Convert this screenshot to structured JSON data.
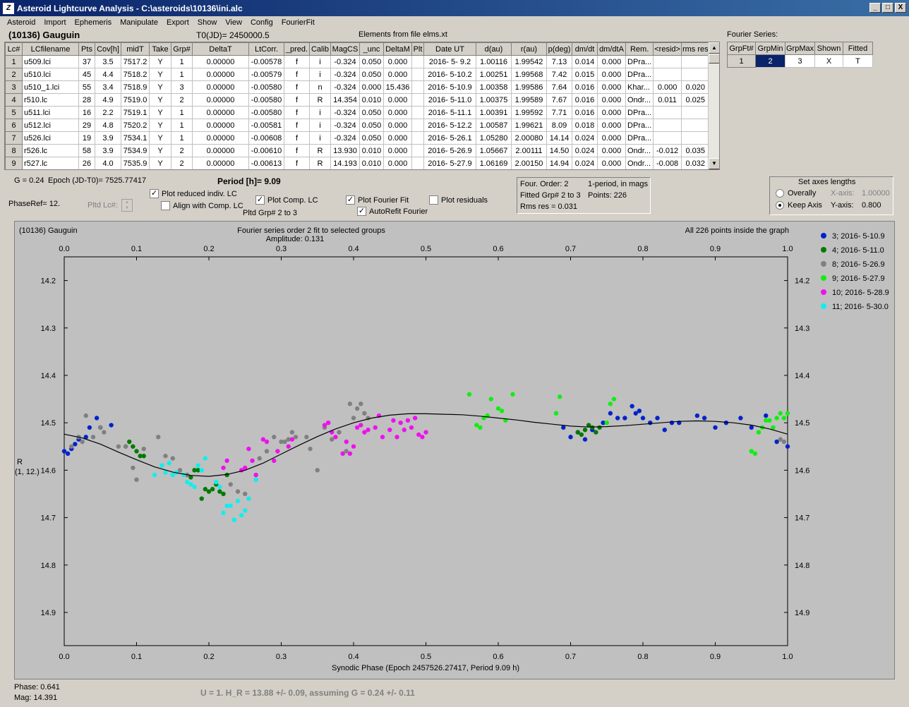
{
  "window": {
    "title": "Asteroid Lightcurve Analysis - C:\\asteroids\\10136\\ini.alc",
    "icon": "app-icon",
    "min": "_",
    "max": "□",
    "close": "X"
  },
  "menu": [
    "Asteroid",
    "Import",
    "Ephemeris",
    "Manipulate",
    "Export",
    "Show",
    "View",
    "Config",
    "FourierFit"
  ],
  "header": {
    "asteroid": "(10136) Gauguin",
    "t0": "T0(JD)= 2450000.5",
    "elements": "Elements from file elms.xt"
  },
  "lc_table": {
    "columns": [
      "Lc#",
      "LCfilename",
      "Pts",
      "Cov[h]",
      "midT",
      "Take",
      "Grp#",
      "DeltaT",
      "LtCorr.",
      "_pred.",
      "Calib",
      "MagCS",
      "_unc",
      "DeltaM",
      "Plt",
      "Date UT",
      "d(au)",
      "r(au)",
      "p(deg)",
      "dm/dt",
      "dm/dtA",
      "Rem.",
      "<resid>",
      "rms res"
    ],
    "rows": [
      [
        "1",
        "u509.lci",
        "37",
        "3.5",
        "7517.2",
        "Y",
        "1",
        "0.00000",
        "-0.00578",
        "f",
        "i",
        "-0.324",
        "0.050",
        "0.000",
        "",
        "2016- 5- 9.2",
        "1.00116",
        "1.99542",
        "7.13",
        "0.014",
        "0.000",
        "DPra...",
        "",
        ""
      ],
      [
        "2",
        "u510.lci",
        "45",
        "4.4",
        "7518.2",
        "Y",
        "1",
        "0.00000",
        "-0.00579",
        "f",
        "i",
        "-0.324",
        "0.050",
        "0.000",
        "",
        "2016- 5-10.2",
        "1.00251",
        "1.99568",
        "7.42",
        "0.015",
        "0.000",
        "DPra...",
        "",
        ""
      ],
      [
        "3",
        "u510_1.lci",
        "55",
        "3.4",
        "7518.9",
        "Y",
        "3",
        "0.00000",
        "-0.00580",
        "f",
        "n",
        "-0.324",
        "0.000",
        "15.436",
        "",
        "2016- 5-10.9",
        "1.00358",
        "1.99586",
        "7.64",
        "0.016",
        "0.000",
        "Khar...",
        "0.000",
        "0.020"
      ],
      [
        "4",
        "r510.lc",
        "28",
        "4.9",
        "7519.0",
        "Y",
        "2",
        "0.00000",
        "-0.00580",
        "f",
        "R",
        "14.354",
        "0.010",
        "0.000",
        "",
        "2016- 5-11.0",
        "1.00375",
        "1.99589",
        "7.67",
        "0.016",
        "0.000",
        "Ondr...",
        "0.011",
        "0.025"
      ],
      [
        "5",
        "u511.lci",
        "16",
        "2.2",
        "7519.1",
        "Y",
        "1",
        "0.00000",
        "-0.00580",
        "f",
        "i",
        "-0.324",
        "0.050",
        "0.000",
        "",
        "2016- 5-11.1",
        "1.00391",
        "1.99592",
        "7.71",
        "0.016",
        "0.000",
        "DPra...",
        "",
        ""
      ],
      [
        "6",
        "u512.lci",
        "29",
        "4.8",
        "7520.2",
        "Y",
        "1",
        "0.00000",
        "-0.00581",
        "f",
        "i",
        "-0.324",
        "0.050",
        "0.000",
        "",
        "2016- 5-12.2",
        "1.00587",
        "1.99621",
        "8.09",
        "0.018",
        "0.000",
        "DPra...",
        "",
        ""
      ],
      [
        "7",
        "u526.lci",
        "19",
        "3.9",
        "7534.1",
        "Y",
        "1",
        "0.00000",
        "-0.00608",
        "f",
        "i",
        "-0.324",
        "0.050",
        "0.000",
        "",
        "2016- 5-26.1",
        "1.05280",
        "2.00080",
        "14.14",
        "0.024",
        "0.000",
        "DPra...",
        "",
        ""
      ],
      [
        "8",
        "r526.lc",
        "58",
        "3.9",
        "7534.9",
        "Y",
        "2",
        "0.00000",
        "-0.00610",
        "f",
        "R",
        "13.930",
        "0.010",
        "0.000",
        "",
        "2016- 5-26.9",
        "1.05667",
        "2.00111",
        "14.50",
        "0.024",
        "0.000",
        "Ondr...",
        "-0.012",
        "0.035"
      ],
      [
        "9",
        "r527.lc",
        "26",
        "4.0",
        "7535.9",
        "Y",
        "2",
        "0.00000",
        "-0.00613",
        "f",
        "R",
        "14.193",
        "0.010",
        "0.000",
        "",
        "2016- 5-27.9",
        "1.06169",
        "2.00150",
        "14.94",
        "0.024",
        "0.000",
        "Ondr...",
        "-0.008",
        "0.032"
      ]
    ]
  },
  "fourier_series": {
    "title": "Fourier Series:",
    "columns": [
      "GrpFt#",
      "GrpMin",
      "GrpMax",
      "Shown",
      "Fitted"
    ],
    "row": [
      "1",
      "2",
      "3",
      "X",
      "T"
    ]
  },
  "controls": {
    "g": "G = 0.24",
    "epoch": "Epoch (JD-T0)= 7525.77417",
    "period": "Period [h]= 9.09",
    "phaseref": "PhaseRef= 12.",
    "pltd_lc": "Pltd Lc#:",
    "plot_reduced": "Plot reduced indiv. LC",
    "align_comp": "Align with Comp. LC",
    "plot_comp": "Plot Comp. LC",
    "pltd_grp": "Pltd Grp#  2   to    3",
    "plot_fourier": "Plot Fourier Fit",
    "autorefit": "AutoRefit Fourier",
    "plot_residuals": "Plot residuals",
    "check_mark": "✓"
  },
  "fit_info": {
    "order": "Four. Order:  2",
    "period_note": "1-period, in mags",
    "fitted": "Fitted Grp# 2 to 3",
    "points": "Points: 226",
    "rms": "Rms res     = 0.031"
  },
  "axes_panel": {
    "title": "Set axes lengths",
    "overally": "Overally",
    "keep_axis": "Keep Axis",
    "xaxis_label": "X-axis:",
    "xaxis_value": "1.00000",
    "yaxis_label": "Y-axis:",
    "yaxis_value": "0.800"
  },
  "footer": {
    "phase": "Phase:  0.641",
    "mag": "Mag:    14.391",
    "hr": "U = 1.   H_R = 13.88 +/- 0.09,  assuming G = 0.24 +/- 0.11"
  },
  "chart_data": {
    "type": "scatter",
    "title_left": "(10136) Gauguin",
    "title_center": "Fourier series order 2 fit to selected groups",
    "amplitude": "Amplitude: 0.131",
    "title_right": "All 226 points inside the graph",
    "xlabel": "Synodic Phase (Epoch 2457526.27417, Period 9.09 h)",
    "ylabel": "R",
    "ylabel2": "(1, 12.)",
    "xlim": [
      0.0,
      1.0
    ],
    "ylim": [
      14.15,
      14.97
    ],
    "y_inverted": true,
    "xticks": [
      0.0,
      0.1,
      0.2,
      0.3,
      0.4,
      0.5,
      0.6,
      0.7,
      0.8,
      0.9,
      1.0
    ],
    "xtick_labels": [
      "0.0",
      "0.1",
      "0.2",
      "0.3",
      "0.4",
      "0.5",
      "0.6",
      "0.7",
      "0.8",
      "0.9",
      "1.0"
    ],
    "yticks": [
      14.2,
      14.3,
      14.4,
      14.5,
      14.6,
      14.7,
      14.8,
      14.9
    ],
    "ytick_labels": [
      "14.2",
      "14.3",
      "14.4",
      "14.5",
      "14.6",
      "14.7",
      "14.8",
      "14.9"
    ],
    "grid": false,
    "legend_placement": "right",
    "fourier_fit": {
      "x": [
        0.0,
        0.025,
        0.05,
        0.075,
        0.1,
        0.125,
        0.15,
        0.175,
        0.2,
        0.225,
        0.25,
        0.275,
        0.3,
        0.325,
        0.35,
        0.375,
        0.4,
        0.425,
        0.45,
        0.475,
        0.5,
        0.525,
        0.55,
        0.575,
        0.6,
        0.625,
        0.65,
        0.675,
        0.7,
        0.725,
        0.75,
        0.775,
        0.8,
        0.825,
        0.85,
        0.875,
        0.9,
        0.925,
        0.95,
        0.975,
        1.0
      ],
      "y": [
        14.524,
        14.532,
        14.545,
        14.562,
        14.578,
        14.593,
        14.604,
        14.611,
        14.613,
        14.609,
        14.6,
        14.585,
        14.566,
        14.547,
        14.529,
        14.513,
        14.5,
        14.49,
        14.484,
        14.481,
        14.481,
        14.482,
        14.483,
        14.486,
        14.49,
        14.494,
        14.499,
        14.503,
        14.507,
        14.509,
        14.508,
        14.506,
        14.503,
        14.5,
        14.497,
        14.496,
        14.497,
        14.5,
        14.505,
        14.513,
        14.524
      ]
    },
    "series": [
      {
        "name": "3; 2016- 5-10.9",
        "color": "#0022cc",
        "x": [
          0.0,
          0.005,
          0.01,
          0.015,
          0.02,
          0.03,
          0.035,
          0.045,
          0.05,
          0.065,
          0.69,
          0.7,
          0.71,
          0.72,
          0.73,
          0.745,
          0.755,
          0.765,
          0.775,
          0.785,
          0.79,
          0.795,
          0.8,
          0.81,
          0.82,
          0.83,
          0.84,
          0.85,
          0.875,
          0.885,
          0.9,
          0.915,
          0.935,
          0.95,
          0.97,
          0.985,
          1.0
        ],
        "y": [
          14.56,
          14.565,
          14.555,
          14.545,
          14.535,
          14.53,
          14.51,
          14.49,
          14.51,
          14.505,
          14.51,
          14.53,
          14.52,
          14.535,
          14.515,
          14.5,
          14.48,
          14.49,
          14.49,
          14.465,
          14.48,
          14.475,
          14.49,
          14.5,
          14.49,
          14.515,
          14.5,
          14.5,
          14.485,
          14.49,
          14.51,
          14.5,
          14.49,
          14.51,
          14.485,
          14.54,
          14.55
        ]
      },
      {
        "name": "4; 2016- 5-11.0",
        "color": "#007a00",
        "x": [
          0.085,
          0.09,
          0.095,
          0.1,
          0.105,
          0.11,
          0.17,
          0.175,
          0.18,
          0.185,
          0.19,
          0.195,
          0.2,
          0.205,
          0.21,
          0.215,
          0.22,
          0.225,
          0.71,
          0.715,
          0.72,
          0.725,
          0.73,
          0.735,
          0.74
        ],
        "y": [
          14.55,
          14.54,
          14.55,
          14.56,
          14.57,
          14.57,
          14.61,
          14.615,
          14.6,
          14.6,
          14.66,
          14.64,
          14.645,
          14.64,
          14.63,
          14.645,
          14.65,
          14.61,
          14.52,
          14.525,
          14.515,
          14.505,
          14.51,
          14.52,
          14.51
        ]
      },
      {
        "name": "8; 2016- 5-26.9",
        "color": "#808080",
        "x": [
          0.01,
          0.02,
          0.025,
          0.03,
          0.04,
          0.05,
          0.055,
          0.075,
          0.085,
          0.095,
          0.1,
          0.11,
          0.13,
          0.14,
          0.15,
          0.16,
          0.17,
          0.23,
          0.24,
          0.25,
          0.255,
          0.265,
          0.27,
          0.28,
          0.29,
          0.3,
          0.305,
          0.31,
          0.315,
          0.32,
          0.335,
          0.34,
          0.35,
          0.36,
          0.365,
          0.37,
          0.38,
          0.39,
          0.395,
          0.4,
          0.405,
          0.41,
          0.415,
          0.42,
          0.99,
          0.995
        ],
        "y": [
          14.55,
          14.53,
          14.54,
          14.485,
          14.53,
          14.51,
          14.52,
          14.55,
          14.55,
          14.595,
          14.62,
          14.555,
          14.53,
          14.57,
          14.575,
          14.6,
          14.61,
          14.63,
          14.645,
          14.65,
          14.66,
          14.62,
          14.575,
          14.56,
          14.53,
          14.54,
          14.54,
          14.535,
          14.52,
          14.53,
          14.53,
          14.555,
          14.6,
          14.51,
          14.5,
          14.535,
          14.52,
          14.56,
          14.46,
          14.49,
          14.47,
          14.46,
          14.48,
          14.49,
          14.535,
          14.54
        ]
      },
      {
        "name": "9; 2016- 5-27.9",
        "color": "#11ee11",
        "x": [
          0.56,
          0.57,
          0.575,
          0.58,
          0.585,
          0.59,
          0.6,
          0.605,
          0.61,
          0.62,
          0.68,
          0.685,
          0.75,
          0.755,
          0.76,
          0.95,
          0.955,
          0.96,
          0.965,
          0.97,
          0.975,
          0.98,
          0.985,
          0.99,
          0.995,
          1.0
        ],
        "y": [
          14.44,
          14.505,
          14.51,
          14.49,
          14.485,
          14.45,
          14.47,
          14.475,
          14.495,
          14.44,
          14.48,
          14.445,
          14.5,
          14.46,
          14.45,
          14.56,
          14.565,
          14.52,
          14.51,
          14.495,
          14.495,
          14.51,
          14.49,
          14.48,
          14.49,
          14.48
        ]
      },
      {
        "name": "10; 2016- 5-28.9",
        "color": "#ee11ee",
        "x": [
          0.22,
          0.225,
          0.245,
          0.25,
          0.255,
          0.26,
          0.265,
          0.275,
          0.28,
          0.29,
          0.295,
          0.31,
          0.315,
          0.36,
          0.365,
          0.37,
          0.375,
          0.385,
          0.39,
          0.395,
          0.4,
          0.405,
          0.41,
          0.415,
          0.42,
          0.43,
          0.435,
          0.44,
          0.45,
          0.455,
          0.46,
          0.465,
          0.47,
          0.475,
          0.48,
          0.485,
          0.49,
          0.495,
          0.5
        ],
        "y": [
          14.595,
          14.58,
          14.6,
          14.595,
          14.555,
          14.58,
          14.61,
          14.535,
          14.54,
          14.58,
          14.56,
          14.55,
          14.535,
          14.505,
          14.5,
          14.52,
          14.53,
          14.565,
          14.54,
          14.565,
          14.55,
          14.51,
          14.505,
          14.52,
          14.515,
          14.51,
          14.485,
          14.53,
          14.515,
          14.495,
          14.53,
          14.5,
          14.515,
          14.495,
          14.51,
          14.49,
          14.525,
          14.53,
          14.52
        ]
      },
      {
        "name": "11; 2016- 5-30.0",
        "color": "#11eeee",
        "x": [
          0.125,
          0.135,
          0.14,
          0.145,
          0.15,
          0.155,
          0.165,
          0.17,
          0.175,
          0.18,
          0.185,
          0.19,
          0.195,
          0.21,
          0.215,
          0.22,
          0.225,
          0.23,
          0.235,
          0.24,
          0.245,
          0.25,
          0.255,
          0.265
        ],
        "y": [
          14.61,
          14.59,
          14.605,
          14.585,
          14.61,
          14.605,
          14.61,
          14.625,
          14.63,
          14.635,
          14.59,
          14.6,
          14.575,
          14.625,
          14.635,
          14.69,
          14.675,
          14.675,
          14.705,
          14.665,
          14.695,
          14.685,
          14.66,
          14.62
        ]
      }
    ]
  }
}
